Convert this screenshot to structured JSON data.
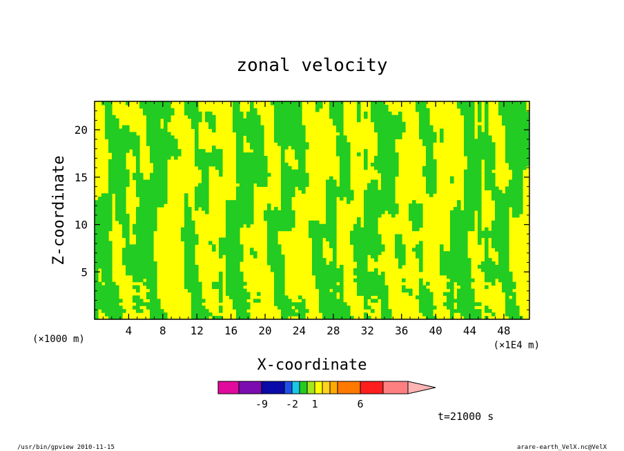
{
  "chart_data": {
    "type": "heatmap",
    "title": "zonal velocity",
    "xlabel": "X-coordinate",
    "ylabel": "Z-coordinate",
    "x_unit_left": "(×1000 m)",
    "x_unit_right": "(×1E4 m)",
    "xlim": [
      0,
      51
    ],
    "ylim": [
      0,
      23
    ],
    "x_ticks": [
      "4",
      "8",
      "12",
      "16",
      "20",
      "24",
      "28",
      "32",
      "36",
      "40",
      "44",
      "48"
    ],
    "y_ticks": [
      "5",
      "10",
      "15",
      "20"
    ],
    "colorbar": {
      "colors": [
        "#e00a9c",
        "#7a0cb0",
        "#0a0aa8",
        "#1e50e8",
        "#19c8e6",
        "#22cc22",
        "#a6e61e",
        "#ffff00",
        "#ffd21e",
        "#ffaa00",
        "#ff7800",
        "#ff1e1e",
        "#ff8080",
        "#ffb4b4"
      ],
      "tick_labels": [
        "-9",
        "-2",
        "1",
        "6"
      ]
    },
    "field_colors": {
      "positive": "#ffff00",
      "negative": "#22cc22",
      "contour": "#3c3c3c"
    },
    "time_label": "t=21000 s"
  },
  "footer": {
    "left": "/usr/bin/gpview  2010-11-15",
    "right": "arare-earth_VelX.nc@VelX"
  }
}
